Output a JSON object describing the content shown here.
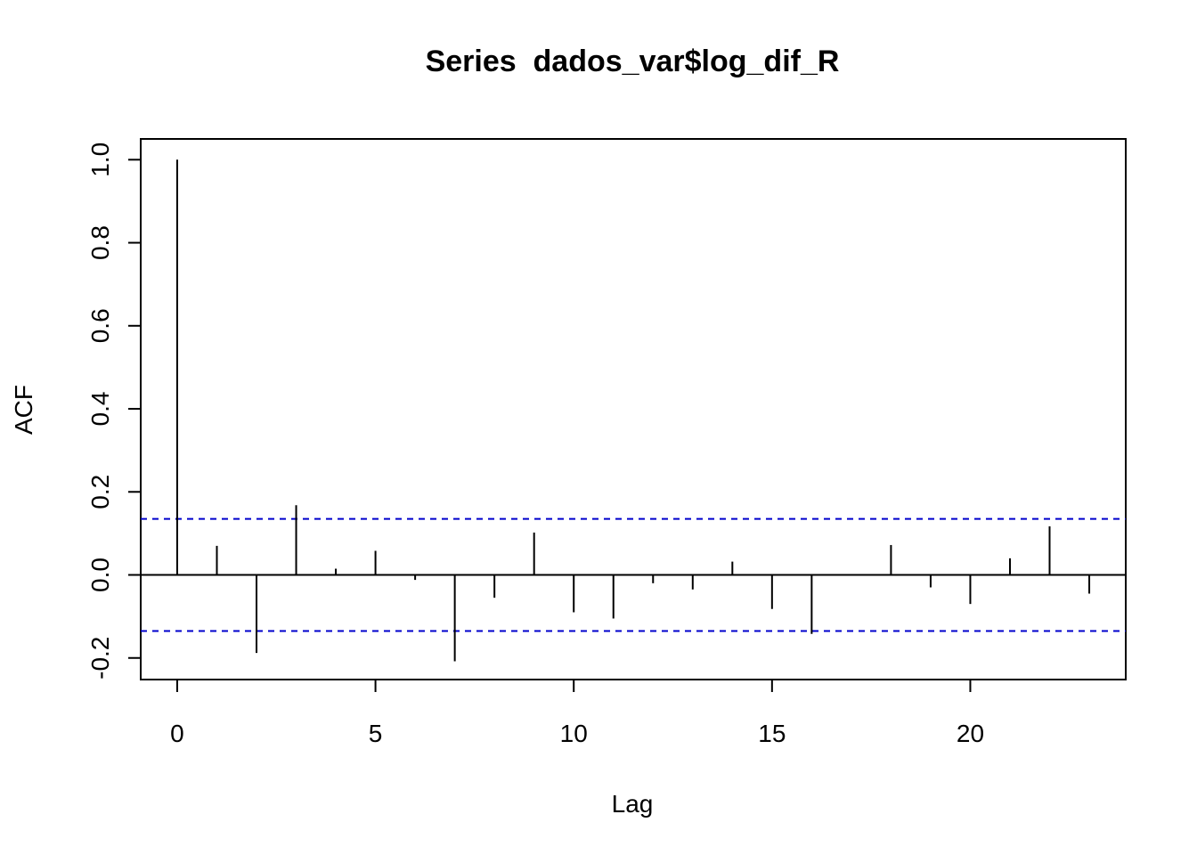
{
  "chart_data": {
    "type": "bar",
    "subtype": "acf-stem",
    "title": "Series  dados_var$log_dif_R",
    "xlabel": "Lag",
    "ylabel": "ACF",
    "xlim": [
      -0.92,
      23.92
    ],
    "ylim": [
      -0.252,
      1.05
    ],
    "x_ticks": [
      0,
      5,
      10,
      15,
      20
    ],
    "y_ticks": [
      -0.2,
      0.0,
      0.2,
      0.4,
      0.6,
      0.8,
      1.0
    ],
    "x_tick_labels": [
      "0",
      "5",
      "10",
      "15",
      "20"
    ],
    "y_tick_labels": [
      "-0.2",
      "0.0",
      "0.2",
      "0.4",
      "0.6",
      "0.8",
      "1.0"
    ],
    "lags": [
      0,
      1,
      2,
      3,
      4,
      5,
      6,
      7,
      8,
      9,
      10,
      11,
      12,
      13,
      14,
      15,
      16,
      17,
      18,
      19,
      20,
      21,
      22,
      23
    ],
    "values": [
      1.0,
      0.07,
      -0.188,
      0.168,
      0.015,
      0.058,
      -0.012,
      -0.208,
      -0.055,
      0.102,
      -0.09,
      -0.105,
      -0.02,
      -0.035,
      0.032,
      -0.082,
      -0.142,
      0.0,
      0.072,
      -0.03,
      -0.07,
      0.04,
      0.117,
      -0.045
    ],
    "confidence_bound": 0.135,
    "colors": {
      "stems": "#000000",
      "confidence_lines": "#0000cc",
      "zero_line": "#000000"
    },
    "grid": false,
    "legend": "none"
  }
}
